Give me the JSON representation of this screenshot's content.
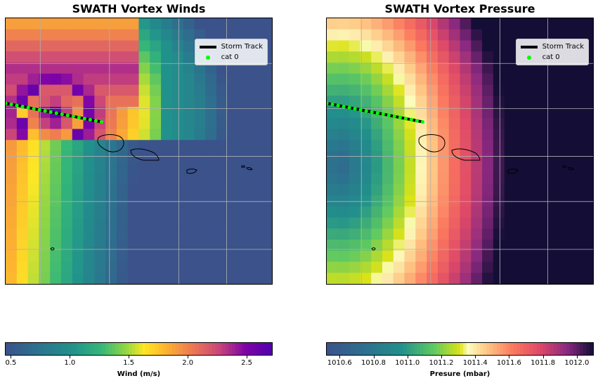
{
  "chart_data": [
    {
      "type": "heatmap",
      "title": "SWATH Vortex Winds",
      "legend": {
        "position": "top-right",
        "entries": [
          "Storm Track",
          "cat 0"
        ]
      },
      "colormap": "viridis-plasma",
      "colorbar": {
        "label": "Wind (m/s)",
        "range": [
          0.45,
          2.72
        ],
        "ticks": [
          0.5,
          1.0,
          1.5,
          2.0,
          2.5
        ],
        "tick_labels": [
          "0.5",
          "1.0",
          "1.5",
          "2.0",
          "2.5"
        ]
      },
      "grid": true,
      "storm_track": {
        "start_frac": [
          0.0,
          0.32
        ],
        "end_frac": [
          0.36,
          0.39
        ]
      },
      "cat0_points": 18
    },
    {
      "type": "heatmap",
      "title": "SWATH Vortex Pressure",
      "legend": {
        "position": "top-right",
        "entries": [
          "Storm Track",
          "cat 0"
        ]
      },
      "colormap": "viridis-magma",
      "colorbar": {
        "label": "Presure (mbar)",
        "range": [
          1010.52,
          1012.1
        ],
        "ticks": [
          1010.6,
          1010.8,
          1011.0,
          1011.2,
          1011.4,
          1011.6,
          1011.8,
          1012.0
        ],
        "tick_labels": [
          "1010.6",
          "1010.8",
          "1011.0",
          "1011.2",
          "1011.4",
          "1011.6",
          "1011.8",
          "1012.0"
        ]
      },
      "grid": true,
      "storm_track": {
        "start_frac": [
          0.0,
          0.32
        ],
        "end_frac": [
          0.36,
          0.39
        ]
      },
      "cat0_points": 18
    }
  ]
}
